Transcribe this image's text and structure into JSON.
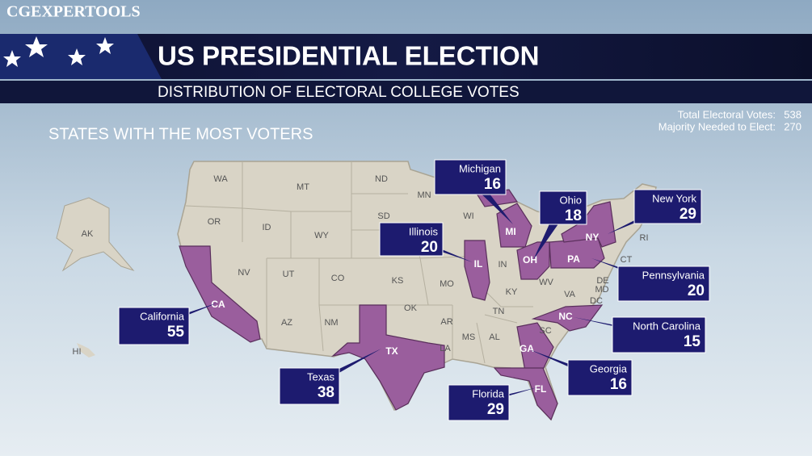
{
  "watermark": "CGEXPERTOOLS",
  "header": {
    "title": "US PRESIDENTIAL ELECTION",
    "subtitle": "DISTRIBUTION OF ELECTORAL COLLEGE VOTES"
  },
  "totals": [
    {
      "label": "Total Electoral Votes:",
      "value": 538
    },
    {
      "label": "Majority Needed to Elect:",
      "value": 270
    }
  ],
  "section_title": "STATES WITH THE MOST VOTERS",
  "state_labels": [
    "WA",
    "MT",
    "ND",
    "MN",
    "WI",
    "OR",
    "ID",
    "SD",
    "WY",
    "AK",
    "NV",
    "UT",
    "CO",
    "KS",
    "MO",
    "IN",
    "KY",
    "WV",
    "VA",
    "OK",
    "TN",
    "AR",
    "AZ",
    "NM",
    "MS",
    "AL",
    "LA",
    "SC",
    "HI",
    "DE",
    "MD",
    "DC",
    "RI",
    "CT",
    "MI",
    "IL",
    "OH",
    "PA",
    "NY",
    "NC",
    "GA",
    "FL",
    "TX",
    "CA"
  ],
  "callouts": [
    {
      "name": "Michigan",
      "votes": 16
    },
    {
      "name": "Ohio",
      "votes": 18
    },
    {
      "name": "New York",
      "votes": 29
    },
    {
      "name": "Illinois",
      "votes": 20
    },
    {
      "name": "Pennsylvania",
      "votes": 20
    },
    {
      "name": "California",
      "votes": 55
    },
    {
      "name": "North Carolina",
      "votes": 15
    },
    {
      "name": "Texas",
      "votes": 38
    },
    {
      "name": "Georgia",
      "votes": 16
    },
    {
      "name": "Florida",
      "votes": 29
    }
  ]
}
